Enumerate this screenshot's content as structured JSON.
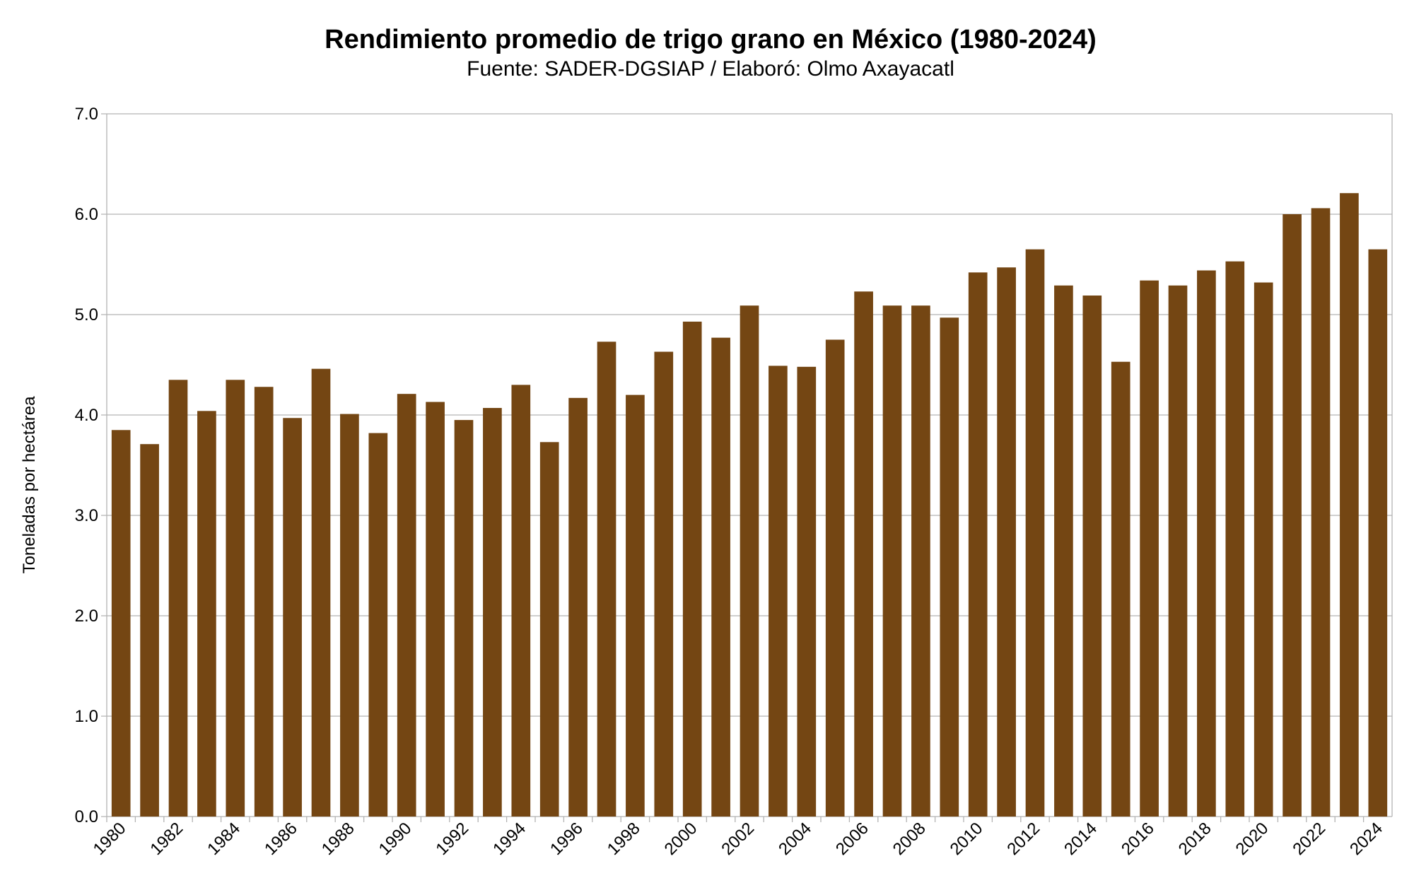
{
  "chart_data": {
    "type": "bar",
    "title": "Rendimiento promedio de trigo grano en México (1980-2024)",
    "subtitle": "Fuente: SADER-DGSIAP / Elaboró: Olmo Axayacatl",
    "xlabel": "",
    "ylabel": "Toneladas por hectárea",
    "ylim": [
      0,
      7
    ],
    "yticks": [
      "0.0",
      "1.0",
      "2.0",
      "3.0",
      "4.0",
      "5.0",
      "6.0",
      "7.0"
    ],
    "grid": true,
    "legend": "none",
    "bar_color": "#744613",
    "categories": [
      1980,
      1981,
      1982,
      1983,
      1984,
      1985,
      1986,
      1987,
      1988,
      1989,
      1990,
      1991,
      1992,
      1993,
      1994,
      1995,
      1996,
      1997,
      1998,
      1999,
      2000,
      2001,
      2002,
      2003,
      2004,
      2005,
      2006,
      2007,
      2008,
      2009,
      2010,
      2011,
      2012,
      2013,
      2014,
      2015,
      2016,
      2017,
      2018,
      2019,
      2020,
      2021,
      2022,
      2023,
      2024
    ],
    "xtick_labels": [
      "1980",
      "1982",
      "1984",
      "1986",
      "1988",
      "1990",
      "1992",
      "1994",
      "1996",
      "1998",
      "2000",
      "2002",
      "2004",
      "2006",
      "2008",
      "2010",
      "2012",
      "2014",
      "2016",
      "2018",
      "2020",
      "2022",
      "2024"
    ],
    "values": [
      3.85,
      3.71,
      4.35,
      4.04,
      4.35,
      4.28,
      3.97,
      4.46,
      4.01,
      3.82,
      4.21,
      4.13,
      3.95,
      4.07,
      4.3,
      3.73,
      4.17,
      4.73,
      4.2,
      4.63,
      4.93,
      4.77,
      5.09,
      4.49,
      4.48,
      4.75,
      5.23,
      5.09,
      5.09,
      4.97,
      5.42,
      5.47,
      5.65,
      5.29,
      5.19,
      4.53,
      5.34,
      5.29,
      5.44,
      5.53,
      5.32,
      6.0,
      6.06,
      6.21,
      5.65
    ]
  }
}
